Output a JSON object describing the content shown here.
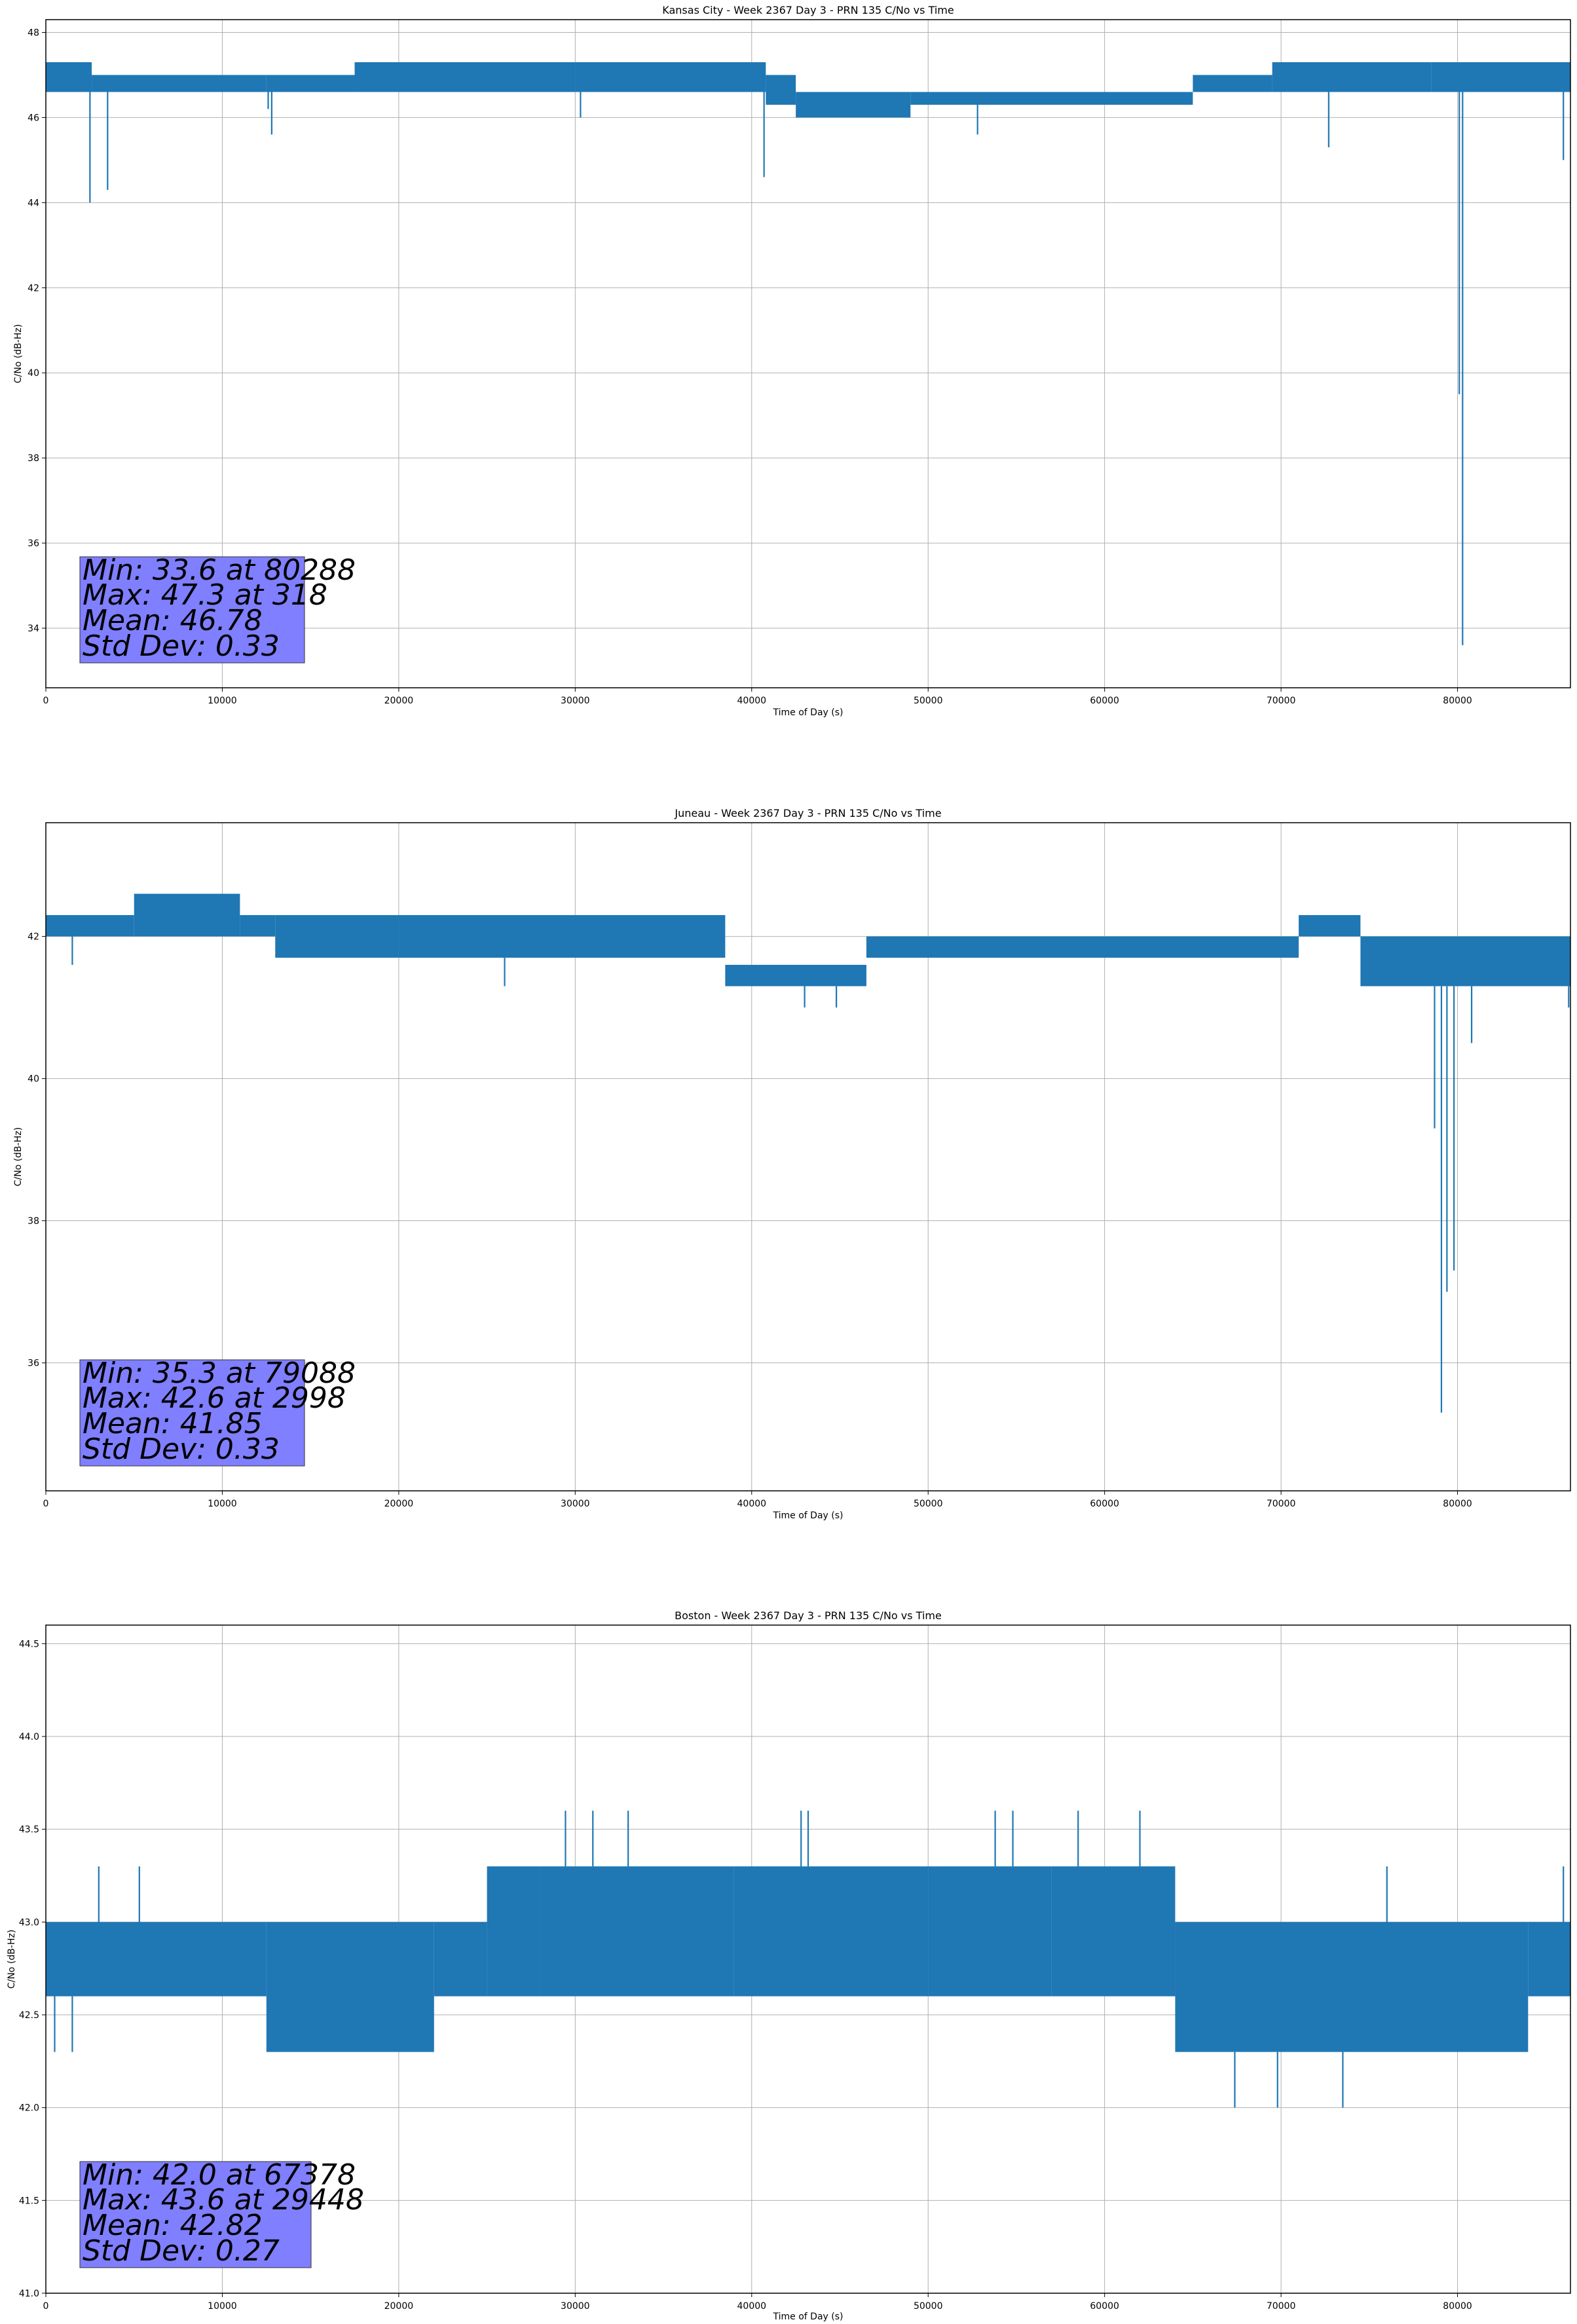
{
  "chart_data": [
    {
      "type": "line",
      "title": "Kansas City - Week 2367 Day 3 - PRN 135 C/No vs Time",
      "xlabel": "Time of Day (s)",
      "ylabel": "C/No (dB-Hz)",
      "xlim": [
        0,
        86400
      ],
      "ylim": [
        32.6,
        48.3
      ],
      "xticks": [
        0,
        10000,
        20000,
        30000,
        40000,
        50000,
        60000,
        70000,
        80000
      ],
      "xtick_labels": [
        "0",
        "10000",
        "20000",
        "30000",
        "40000",
        "50000",
        "60000",
        "70000",
        "80000"
      ],
      "yticks": [
        34,
        36,
        38,
        40,
        42,
        44,
        46,
        48
      ],
      "ytick_labels": [
        "34",
        "36",
        "38",
        "40",
        "42",
        "44",
        "46",
        "48"
      ],
      "grid": true,
      "line_color": "#1f77b4",
      "series": [
        {
          "name": "C/No",
          "segments": [
            {
              "x0": 0,
              "x1": 2600,
              "low": 46.6,
              "high": 47.3
            },
            {
              "x0": 2600,
              "x1": 12500,
              "low": 46.6,
              "high": 47.0
            },
            {
              "x0": 12500,
              "x1": 17500,
              "low": 46.6,
              "high": 47.0
            },
            {
              "x0": 17500,
              "x1": 30000,
              "low": 46.6,
              "high": 47.3
            },
            {
              "x0": 30000,
              "x1": 40800,
              "low": 46.6,
              "high": 47.3
            },
            {
              "x0": 40800,
              "x1": 42500,
              "low": 46.3,
              "high": 47.0
            },
            {
              "x0": 42500,
              "x1": 49000,
              "low": 46.0,
              "high": 46.6
            },
            {
              "x0": 49000,
              "x1": 65000,
              "low": 46.3,
              "high": 46.6
            },
            {
              "x0": 65000,
              "x1": 69500,
              "low": 46.6,
              "high": 47.0
            },
            {
              "x0": 69500,
              "x1": 78500,
              "low": 46.6,
              "high": 47.3
            },
            {
              "x0": 78500,
              "x1": 86400,
              "low": 46.6,
              "high": 47.3
            }
          ]
        }
      ],
      "spikes": [
        {
          "x": 2500,
          "y": 44.0
        },
        {
          "x": 3500,
          "y": 44.3
        },
        {
          "x": 12600,
          "y": 46.2
        },
        {
          "x": 12800,
          "y": 45.6
        },
        {
          "x": 30300,
          "y": 46.0
        },
        {
          "x": 40700,
          "y": 44.6
        },
        {
          "x": 52800,
          "y": 45.6
        },
        {
          "x": 72700,
          "y": 45.3
        },
        {
          "x": 80100,
          "y": 39.5
        },
        {
          "x": 80288,
          "y": 33.6
        },
        {
          "x": 86000,
          "y": 45.0
        }
      ],
      "stats": [
        "Min: 33.6 at 80288",
        "Max: 47.3 at 318",
        "Mean: 46.78",
        "Std Dev: 0.33"
      ],
      "stats_box_color": "#7f7fff"
    },
    {
      "type": "line",
      "title": "Juneau - Week 2367 Day 3 - PRN 135 C/No vs Time",
      "xlabel": "Time of Day (s)",
      "ylabel": "C/No (dB-Hz)",
      "xlim": [
        0,
        86400
      ],
      "ylim": [
        34.2,
        43.6
      ],
      "xticks": [
        0,
        10000,
        20000,
        30000,
        40000,
        50000,
        60000,
        70000,
        80000
      ],
      "xtick_labels": [
        "0",
        "10000",
        "20000",
        "30000",
        "40000",
        "50000",
        "60000",
        "70000",
        "80000"
      ],
      "yticks": [
        36,
        38,
        40,
        42
      ],
      "ytick_labels": [
        "36",
        "38",
        "40",
        "42"
      ],
      "grid": true,
      "line_color": "#1f77b4",
      "series": [
        {
          "name": "C/No",
          "segments": [
            {
              "x0": 0,
              "x1": 5000,
              "low": 42.0,
              "high": 42.3
            },
            {
              "x0": 5000,
              "x1": 11000,
              "low": 42.0,
              "high": 42.6
            },
            {
              "x0": 11000,
              "x1": 13000,
              "low": 42.0,
              "high": 42.3
            },
            {
              "x0": 13000,
              "x1": 20000,
              "low": 41.7,
              "high": 42.3
            },
            {
              "x0": 20000,
              "x1": 27000,
              "low": 41.7,
              "high": 42.3
            },
            {
              "x0": 27000,
              "x1": 38500,
              "low": 41.7,
              "high": 42.3
            },
            {
              "x0": 38500,
              "x1": 46500,
              "low": 41.3,
              "high": 41.6
            },
            {
              "x0": 46500,
              "x1": 71000,
              "low": 41.7,
              "high": 42.0
            },
            {
              "x0": 71000,
              "x1": 74500,
              "low": 42.0,
              "high": 42.3
            },
            {
              "x0": 74500,
              "x1": 86400,
              "low": 41.3,
              "high": 42.0
            }
          ]
        }
      ],
      "spikes": [
        {
          "x": 1500,
          "y": 41.6
        },
        {
          "x": 26000,
          "y": 41.3
        },
        {
          "x": 43000,
          "y": 41.0
        },
        {
          "x": 44800,
          "y": 41.0
        },
        {
          "x": 78700,
          "y": 39.3
        },
        {
          "x": 79088,
          "y": 35.3
        },
        {
          "x": 79400,
          "y": 37.0
        },
        {
          "x": 79800,
          "y": 37.3
        },
        {
          "x": 80800,
          "y": 40.5
        },
        {
          "x": 86300,
          "y": 41.0
        }
      ],
      "stats": [
        "Min: 35.3 at 79088",
        "Max: 42.6 at 2998",
        "Mean: 41.85",
        "Std Dev: 0.33"
      ],
      "stats_box_color": "#7f7fff"
    },
    {
      "type": "line",
      "title": "Boston - Week 2367 Day 3 - PRN 135 C/No vs Time",
      "xlabel": "Time of Day (s)",
      "ylabel": "C/No (dB-Hz)",
      "xlim": [
        0,
        86400
      ],
      "ylim": [
        41.0,
        44.6
      ],
      "xticks": [
        0,
        10000,
        20000,
        30000,
        40000,
        50000,
        60000,
        70000,
        80000
      ],
      "xtick_labels": [
        "0",
        "10000",
        "20000",
        "30000",
        "40000",
        "50000",
        "60000",
        "70000",
        "80000"
      ],
      "yticks": [
        41.0,
        41.5,
        42.0,
        42.5,
        43.0,
        43.5,
        44.0,
        44.5
      ],
      "ytick_labels": [
        "41.0",
        "41.5",
        "42.0",
        "42.5",
        "43.0",
        "43.5",
        "44.0",
        "44.5"
      ],
      "grid": true,
      "line_color": "#1f77b4",
      "series": [
        {
          "name": "C/No",
          "segments": [
            {
              "x0": 0,
              "x1": 12500,
              "low": 42.6,
              "high": 43.0
            },
            {
              "x0": 12500,
              "x1": 22000,
              "low": 42.3,
              "high": 43.0
            },
            {
              "x0": 22000,
              "x1": 25000,
              "low": 42.6,
              "high": 43.0
            },
            {
              "x0": 25000,
              "x1": 28000,
              "low": 42.6,
              "high": 43.3
            },
            {
              "x0": 28000,
              "x1": 39000,
              "low": 42.6,
              "high": 43.3
            },
            {
              "x0": 39000,
              "x1": 50000,
              "low": 42.6,
              "high": 43.3
            },
            {
              "x0": 50000,
              "x1": 57000,
              "low": 42.6,
              "high": 43.3
            },
            {
              "x0": 57000,
              "x1": 64000,
              "low": 42.6,
              "high": 43.3
            },
            {
              "x0": 64000,
              "x1": 72000,
              "low": 42.3,
              "high": 43.0
            },
            {
              "x0": 72000,
              "x1": 84000,
              "low": 42.3,
              "high": 43.0
            },
            {
              "x0": 84000,
              "x1": 86400,
              "low": 42.6,
              "high": 43.0
            }
          ]
        }
      ],
      "spikes": [
        {
          "x": 500,
          "y": 42.3
        },
        {
          "x": 1500,
          "y": 42.3
        },
        {
          "x": 3000,
          "y": 43.3
        },
        {
          "x": 5300,
          "y": 43.3
        },
        {
          "x": 29448,
          "y": 43.6
        },
        {
          "x": 31000,
          "y": 43.6
        },
        {
          "x": 33000,
          "y": 43.6
        },
        {
          "x": 42800,
          "y": 43.6
        },
        {
          "x": 43200,
          "y": 43.6
        },
        {
          "x": 53800,
          "y": 43.6
        },
        {
          "x": 54800,
          "y": 43.6
        },
        {
          "x": 58500,
          "y": 43.6
        },
        {
          "x": 62000,
          "y": 43.6
        },
        {
          "x": 67378,
          "y": 42.0
        },
        {
          "x": 69800,
          "y": 42.0
        },
        {
          "x": 73500,
          "y": 42.0
        },
        {
          "x": 76000,
          "y": 43.3
        },
        {
          "x": 86000,
          "y": 43.3
        }
      ],
      "stats": [
        "Min: 42.0 at 67378",
        "Max: 43.6 at 29448",
        "Mean: 42.82",
        "Std Dev: 0.27"
      ],
      "stats_box_color": "#7f7fff"
    }
  ]
}
